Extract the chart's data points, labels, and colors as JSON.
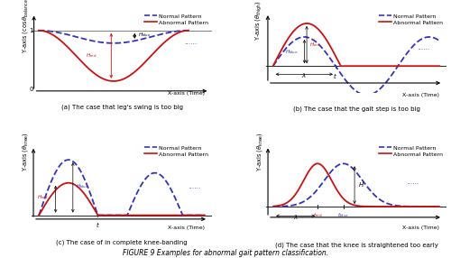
{
  "title": "FIGURE 9 Examples for abnormal gait pattern classification.",
  "panels": [
    {
      "ylabel": "Y-axis ($\\cos\\theta_{\\rm balance}$)",
      "xlabel": "X-axis (Time)",
      "caption": "(a) The case that leg's swing is too big"
    },
    {
      "ylabel": "Y-axis ($\\theta_{\\rm thigh}$)",
      "xlabel": "X-axis (Time)",
      "caption": "(b) The case that the gait step is too big"
    },
    {
      "ylabel": "Y-axis ($\\theta_{\\rm knee}$)",
      "xlabel": "X-axis (Time)",
      "caption": "(c) The case of in complete knee-banding"
    },
    {
      "ylabel": "Y-axis ($\\theta_{\\rm knee}$)",
      "xlabel": "X-axis (Time)",
      "caption": "(d) The case that the knee is straightened too early"
    }
  ],
  "blue_color": "#3333bb",
  "red_color": "#cc1111",
  "legend_blue": "Normal Pattern",
  "legend_red": "Abnormal Pattern"
}
